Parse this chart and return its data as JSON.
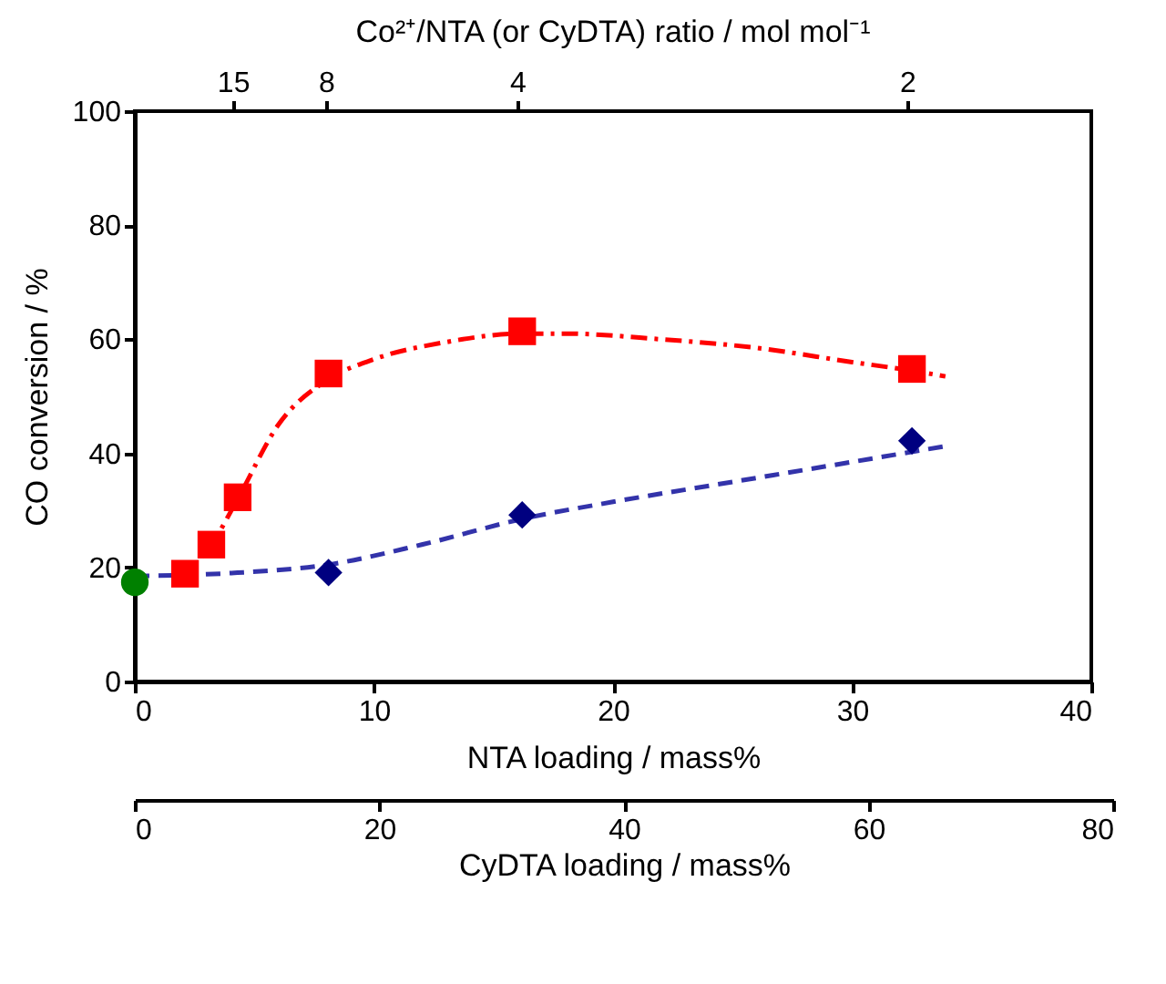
{
  "chart_data": {
    "type": "scatter",
    "xlabel": "NTA loading / mass%",
    "ylabel": "CO conversion / %",
    "x2label": "CyDTA loading / mass%",
    "annotations": [
      "Co²⁺/NTA (or CyDTA) ratio / mol mol⁻¹",
      {
        "text": "15",
        "x": 4.1
      },
      {
        "text": "8",
        "x": 8.0
      },
      {
        "text": "4",
        "x": 16.0
      },
      {
        "text": "2",
        "x": 32.3
      }
    ],
    "xlim": [
      0,
      40
    ],
    "xticks": [
      0,
      10,
      20,
      30,
      40
    ],
    "ylim": [
      0,
      100
    ],
    "yticks": [
      0,
      20,
      40,
      60,
      80,
      100
    ],
    "x2lim": [
      0,
      80
    ],
    "x2ticks": [
      0,
      20,
      40,
      60,
      80
    ],
    "grid": false,
    "series": [
      {
        "type": "line",
        "line_style": "dashdot",
        "color": "#ff0000",
        "x": [
          2.1,
          3.2,
          4.3,
          6,
          8.1,
          10,
          13,
          16.2,
          18,
          22,
          26,
          30,
          32.5,
          33.9
        ],
        "values": [
          19,
          24,
          32,
          45,
          53,
          56.5,
          59.5,
          61,
          61,
          60,
          58.5,
          56,
          54.5,
          53.5
        ]
      },
      {
        "type": "line",
        "line_style": "dashed",
        "color": "#3333aa",
        "x": [
          0,
          4,
          8.1,
          12,
          16.2,
          20,
          25,
          30,
          33.8
        ],
        "values": [
          18.5,
          19,
          20.5,
          24,
          28.5,
          31.5,
          35,
          38.5,
          41.2
        ]
      },
      {
        "marker": "square",
        "color": "#ff0000",
        "x": [
          2.1,
          3.2,
          4.3,
          8.1,
          16.2,
          32.5
        ],
        "values": [
          18.9,
          24.0,
          32.3,
          54.0,
          61.4,
          54.8
        ]
      },
      {
        "marker": "diamond",
        "color": "#000080",
        "x": [
          8.1,
          16.2,
          32.5
        ],
        "values": [
          19.1,
          29.2,
          42.2
        ]
      },
      {
        "marker": "circle",
        "color": "#008000",
        "x": [
          0
        ],
        "values": [
          17.4
        ]
      }
    ]
  }
}
